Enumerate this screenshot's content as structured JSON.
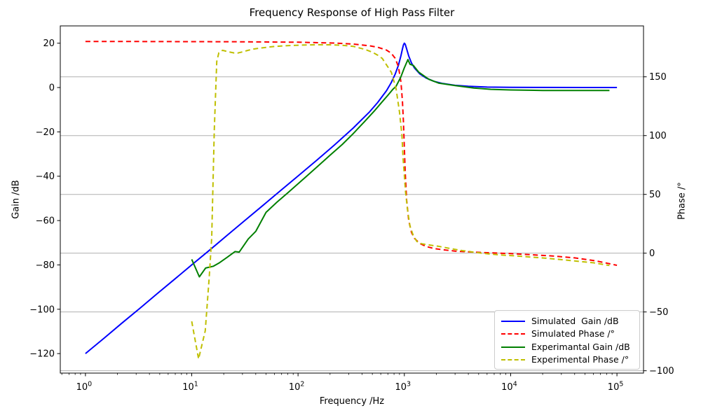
{
  "chart_data": {
    "type": "line",
    "title": "Frequency Response of High Pass Filter",
    "xlabel": "Frequency /Hz",
    "ylabel_left": "Gain /dB",
    "ylabel_right": "Phase /°",
    "x_scale": "log",
    "xlim": [
      0.58,
      177800
    ],
    "x_tick_base": "10",
    "x_tick_exponents": [
      0,
      1,
      2,
      3,
      4,
      5
    ],
    "y_left": {
      "label": "Gain /dB",
      "ticks": [
        20,
        0,
        -20,
        -40,
        -60,
        -80,
        -100,
        -120
      ],
      "lim": [
        -128.8,
        27.8
      ]
    },
    "y_right": {
      "label": "Phase /°",
      "ticks": [
        150,
        100,
        50,
        0,
        -50,
        -100
      ],
      "lim": [
        -102,
        193.3
      ]
    },
    "grid": {
      "horizontal": true,
      "vertical": false,
      "follows": "right-axis-ticks",
      "color": "#b0b0b0"
    },
    "legend_position": "lower right",
    "colors": {
      "simulated_gain": "#0000ff",
      "simulated_phase": "#ff0000",
      "experimental_gain": "#008000",
      "experimental_phase": "#bfbf00",
      "grid": "#b0b0b0",
      "spine": "#000000"
    },
    "series": [
      {
        "name": "Simulated  Gain /dB",
        "color": "#0000ff",
        "style": "solid",
        "axis": "left",
        "points": [
          [
            1,
            -120
          ],
          [
            1.5,
            -113
          ],
          [
            2.2,
            -106.3
          ],
          [
            3.3,
            -99.3
          ],
          [
            4.7,
            -93.1
          ],
          [
            6.8,
            -86.7
          ],
          [
            10,
            -80
          ],
          [
            15,
            -73
          ],
          [
            22,
            -66.3
          ],
          [
            33,
            -59.2
          ],
          [
            47,
            -53.1
          ],
          [
            68,
            -46.6
          ],
          [
            100,
            -39.9
          ],
          [
            150,
            -32.8
          ],
          [
            220,
            -25.9
          ],
          [
            330,
            -18.3
          ],
          [
            470,
            -11
          ],
          [
            560,
            -6.8
          ],
          [
            680,
            -1.4
          ],
          [
            750,
            2.1
          ],
          [
            820,
            6
          ],
          [
            880,
            10.1
          ],
          [
            930,
            14.4
          ],
          [
            960,
            17.4
          ],
          [
            980,
            19.2
          ],
          [
            1000,
            20
          ],
          [
            1020,
            19.5
          ],
          [
            1050,
            17.5
          ],
          [
            1100,
            14.2
          ],
          [
            1170,
            11
          ],
          [
            1250,
            8.7
          ],
          [
            1400,
            6.1
          ],
          [
            1600,
            4.3
          ],
          [
            1900,
            2.8
          ],
          [
            2300,
            1.8
          ],
          [
            3000,
            1
          ],
          [
            4000,
            0.6
          ],
          [
            6000,
            0.2
          ],
          [
            10000,
            0.1
          ],
          [
            20000,
            0.05
          ],
          [
            50000,
            0.02
          ],
          [
            100000,
            0.01
          ]
        ]
      },
      {
        "name": "Simulated Phase /°",
        "color": "#ff0000",
        "style": "dashed",
        "axis": "right",
        "points": [
          [
            1,
            180
          ],
          [
            3,
            180
          ],
          [
            10,
            179.9
          ],
          [
            30,
            179.8
          ],
          [
            100,
            179.4
          ],
          [
            220,
            178.7
          ],
          [
            330,
            177.9
          ],
          [
            470,
            176.4
          ],
          [
            560,
            175.2
          ],
          [
            680,
            172.7
          ],
          [
            750,
            170.2
          ],
          [
            820,
            165.8
          ],
          [
            880,
            158.6
          ],
          [
            930,
            145.4
          ],
          [
            960,
            129.1
          ],
          [
            980,
            111.9
          ],
          [
            1000,
            89.9
          ],
          [
            1020,
            68.3
          ],
          [
            1050,
            45.6
          ],
          [
            1100,
            27.5
          ],
          [
            1170,
            17.5
          ],
          [
            1250,
            12.4
          ],
          [
            1400,
            8.2
          ],
          [
            1600,
            5.7
          ],
          [
            1900,
            4
          ],
          [
            2300,
            2.9
          ],
          [
            3000,
            1.8
          ],
          [
            4000,
            1.1
          ],
          [
            6000,
            0.4
          ],
          [
            10000,
            -0.4
          ],
          [
            16000,
            -1.4
          ],
          [
            25000,
            -2.4
          ],
          [
            40000,
            -4
          ],
          [
            63000,
            -6.5
          ],
          [
            100000,
            -10.3
          ]
        ]
      },
      {
        "name": "Experimantal Gain /dB",
        "color": "#008000",
        "style": "solid",
        "axis": "left",
        "points": [
          [
            10,
            -77.5
          ],
          [
            11.8,
            -85.4
          ],
          [
            13.5,
            -81.4
          ],
          [
            16,
            -80.6
          ],
          [
            18,
            -79.2
          ],
          [
            21.5,
            -76.6
          ],
          [
            25.5,
            -74
          ],
          [
            28,
            -74.2
          ],
          [
            34,
            -68.3
          ],
          [
            40,
            -64.9
          ],
          [
            50,
            -56.3
          ],
          [
            63,
            -51.8
          ],
          [
            80,
            -47.5
          ],
          [
            100,
            -43.4
          ],
          [
            130,
            -38.6
          ],
          [
            160,
            -34.7
          ],
          [
            200,
            -30.5
          ],
          [
            260,
            -25.7
          ],
          [
            330,
            -20.8
          ],
          [
            420,
            -15.5
          ],
          [
            530,
            -10.2
          ],
          [
            620,
            -6.4
          ],
          [
            700,
            -3.5
          ],
          [
            780,
            -0.8
          ],
          [
            835,
            0.5
          ],
          [
            925,
            4.7
          ],
          [
            1000,
            8.9
          ],
          [
            1080,
            12.6
          ],
          [
            1130,
            10.5
          ],
          [
            1215,
            10.0
          ],
          [
            1370,
            6.9
          ],
          [
            1700,
            3.7
          ],
          [
            2100,
            2.0
          ],
          [
            3000,
            0.9
          ],
          [
            4500,
            -0.2
          ],
          [
            6500,
            -0.8
          ],
          [
            10000,
            -1.1
          ],
          [
            20000,
            -1.3
          ],
          [
            40000,
            -1.3
          ],
          [
            85000,
            -1.3
          ]
        ]
      },
      {
        "name": "Experimental Phase /°",
        "color": "#bfbf00",
        "style": "dashed",
        "axis": "right",
        "points": [
          [
            10,
            -58
          ],
          [
            11.6,
            -90
          ],
          [
            13.4,
            -66
          ],
          [
            14.6,
            -21
          ],
          [
            15.4,
            13
          ],
          [
            16.3,
            105
          ],
          [
            17.2,
            163
          ],
          [
            18,
            170.5
          ],
          [
            19.5,
            172.5
          ],
          [
            21,
            171.8
          ],
          [
            23,
            171
          ],
          [
            25,
            170.3
          ],
          [
            27,
            170.2
          ],
          [
            30,
            171.2
          ],
          [
            33,
            172.2
          ],
          [
            37,
            173.4
          ],
          [
            42,
            174.2
          ],
          [
            50,
            175
          ],
          [
            60,
            175.8
          ],
          [
            75,
            176.4
          ],
          [
            95,
            176.8
          ],
          [
            120,
            177.1
          ],
          [
            150,
            177.3
          ],
          [
            200,
            177.2
          ],
          [
            260,
            176.8
          ],
          [
            330,
            175.9
          ],
          [
            420,
            173.5
          ],
          [
            500,
            171
          ],
          [
            560,
            168.5
          ],
          [
            620,
            165.7
          ],
          [
            755,
            153.8
          ],
          [
            836,
            139.9
          ],
          [
            900,
            120
          ],
          [
            950,
            100.2
          ],
          [
            973,
            80.4
          ],
          [
            1000,
            66.5
          ],
          [
            1025,
            52.6
          ],
          [
            1078,
            34.8
          ],
          [
            1130,
            22.9
          ],
          [
            1215,
            14.9
          ],
          [
            1312,
            9.9
          ],
          [
            1455,
            8
          ],
          [
            1700,
            7
          ],
          [
            2100,
            5.8
          ],
          [
            2700,
            4
          ],
          [
            3500,
            2.2
          ],
          [
            4500,
            0.8
          ],
          [
            6000,
            -0.5
          ],
          [
            8000,
            -1.5
          ],
          [
            11000,
            -2.3
          ],
          [
            15000,
            -3.2
          ],
          [
            21000,
            -4.2
          ],
          [
            30000,
            -5.5
          ],
          [
            42000,
            -6.8
          ],
          [
            60000,
            -8.2
          ],
          [
            85000,
            -10.5
          ]
        ]
      }
    ]
  }
}
